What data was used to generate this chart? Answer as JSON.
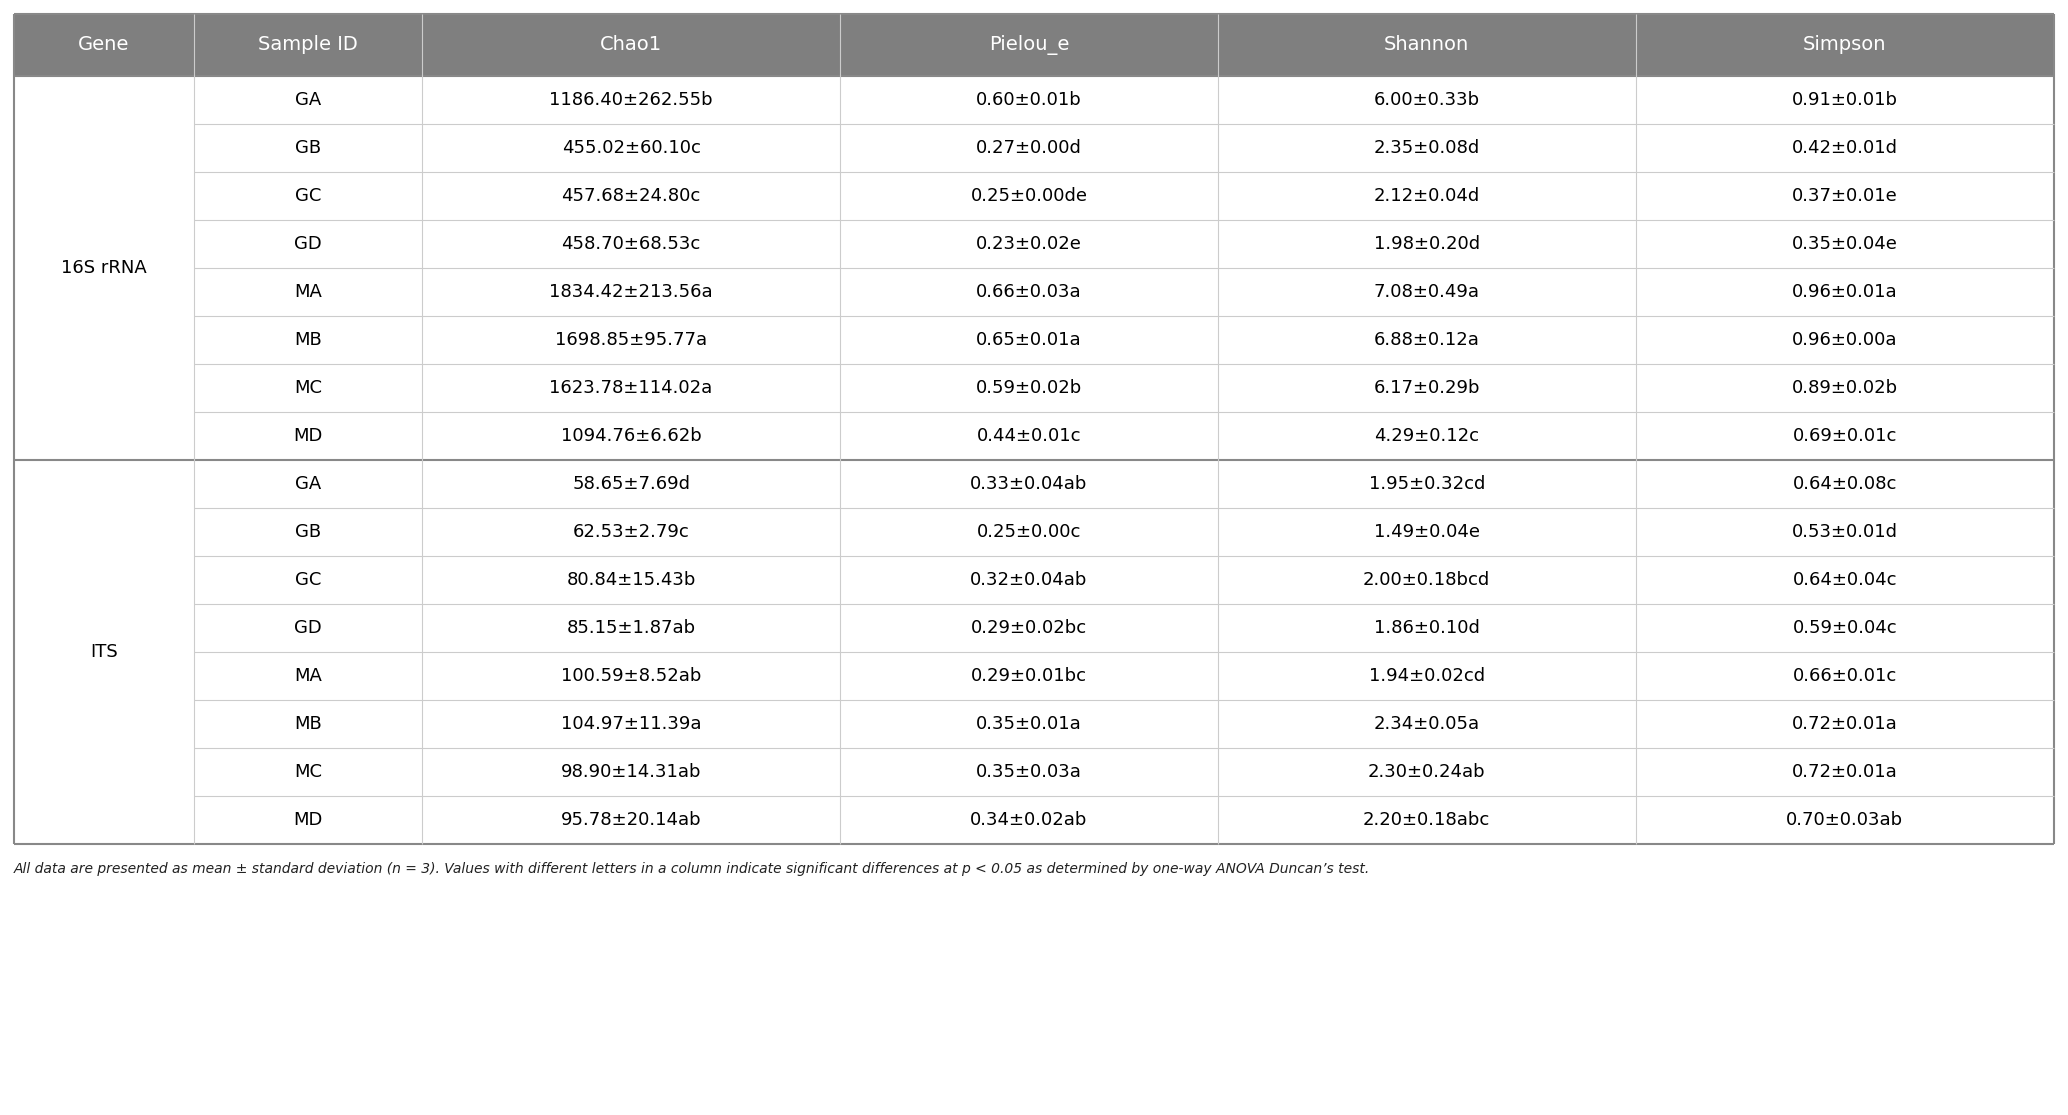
{
  "headers": [
    "Gene",
    "Sample ID",
    "Chao1",
    "Pielou_e",
    "Shannon",
    "Simpson"
  ],
  "header_bg": "#7f7f7f",
  "header_fg": "#ffffff",
  "cell_bg": "#ffffff",
  "border_dark": "#888888",
  "border_light": "#cccccc",
  "gene_label_16s": "16S rRNA",
  "gene_label_its": "ITS",
  "rows_16s": [
    [
      "GA",
      "1186.40±262.55b",
      "0.60±0.01b",
      "6.00±0.33b",
      "0.91±0.01b"
    ],
    [
      "GB",
      "455.02±60.10c",
      "0.27±0.00d",
      "2.35±0.08d",
      "0.42±0.01d"
    ],
    [
      "GC",
      "457.68±24.80c",
      "0.25±0.00de",
      "2.12±0.04d",
      "0.37±0.01e"
    ],
    [
      "GD",
      "458.70±68.53c",
      "0.23±0.02e",
      "1.98±0.20d",
      "0.35±0.04e"
    ],
    [
      "MA",
      "1834.42±213.56a",
      "0.66±0.03a",
      "7.08±0.49a",
      "0.96±0.01a"
    ],
    [
      "MB",
      "1698.85±95.77a",
      "0.65±0.01a",
      "6.88±0.12a",
      "0.96±0.00a"
    ],
    [
      "MC",
      "1623.78±114.02a",
      "0.59±0.02b",
      "6.17±0.29b",
      "0.89±0.02b"
    ],
    [
      "MD",
      "1094.76±6.62b",
      "0.44±0.01c",
      "4.29±0.12c",
      "0.69±0.01c"
    ]
  ],
  "rows_its": [
    [
      "GA",
      "58.65±7.69d",
      "0.33±0.04ab",
      "1.95±0.32cd",
      "0.64±0.08c"
    ],
    [
      "GB",
      "62.53±2.79c",
      "0.25±0.00c",
      "1.49±0.04e",
      "0.53±0.01d"
    ],
    [
      "GC",
      "80.84±15.43b",
      "0.32±0.04ab",
      "2.00±0.18bcd",
      "0.64±0.04c"
    ],
    [
      "GD",
      "85.15±1.87ab",
      "0.29±0.02bc",
      "1.86±0.10d",
      "0.59±0.04c"
    ],
    [
      "MA",
      "100.59±8.52ab",
      "0.29±0.01bc",
      "1.94±0.02cd",
      "0.66±0.01c"
    ],
    [
      "MB",
      "104.97±11.39a",
      "0.35±0.01a",
      "2.34±0.05a",
      "0.72±0.01a"
    ],
    [
      "MC",
      "98.90±14.31ab",
      "0.35±0.03a",
      "2.30±0.24ab",
      "0.72±0.01a"
    ],
    [
      "MD",
      "95.78±20.14ab",
      "0.34±0.02ab",
      "2.20±0.18abc",
      "0.70±0.03ab"
    ]
  ],
  "footnote": "All data are presented as mean ± standard deviation (n = 3). Values with different letters in a column indicate significant differences at p < 0.05 as determined by one-way ANOVA Duncan’s test.",
  "fig_width": 20.68,
  "fig_height": 11.15,
  "dpi": 100,
  "font_size_header": 14,
  "font_size_body": 13,
  "font_size_gene": 13,
  "font_size_footnote": 10
}
